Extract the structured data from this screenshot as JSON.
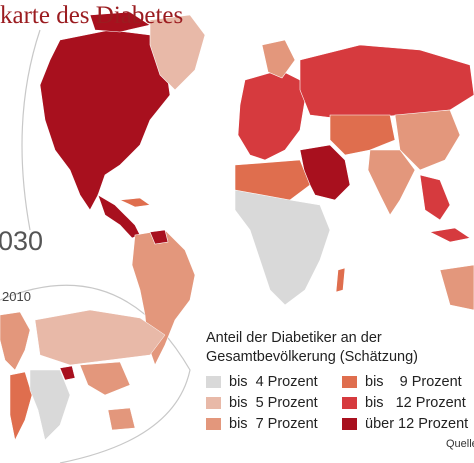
{
  "header": {
    "title": "karte des Diabetes"
  },
  "maps": {
    "year_2030": "030",
    "year_2010": "2010"
  },
  "legend": {
    "title_line1": "Anteil der Diabetiker an der",
    "title_line2": "Gesamtbevölkerung (Schätzung)",
    "items": [
      {
        "label": "bis  4 Prozent",
        "color": "#d9d9d9"
      },
      {
        "label": "bis  5 Prozent",
        "color": "#e8b9a8"
      },
      {
        "label": "bis  7 Prozent",
        "color": "#e3977c"
      },
      {
        "label": "bis    9 Prozent",
        "color": "#df6e4e"
      },
      {
        "label": "bis   12 Prozent",
        "color": "#d63a3e"
      },
      {
        "label": "über 12 Prozent",
        "color": "#a8101e"
      }
    ]
  },
  "source": {
    "label": "Quelle"
  }
}
